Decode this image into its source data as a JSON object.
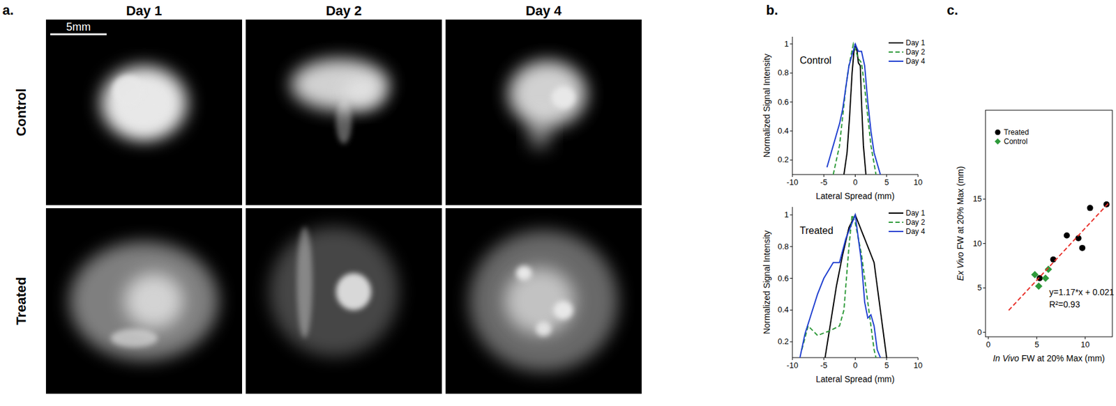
{
  "image_panel": {
    "label": "a.",
    "columns": [
      "Day 1",
      "Day 2",
      "Day 4"
    ],
    "rows": [
      "Control",
      "Treated"
    ],
    "scale_bar": "5mm"
  },
  "chart_data": [
    {
      "type": "line",
      "panel_label": "b.",
      "annotation": "Control",
      "xlabel": "Lateral Spread (mm)",
      "ylabel": "Normalized Signal Intensity",
      "xlim": [
        -10,
        10
      ],
      "xticks": [
        -10,
        -5,
        0,
        5,
        10
      ],
      "ylim": [
        0.1,
        1.05
      ],
      "yticks": [
        0.2,
        0.4,
        0.6,
        0.8,
        1
      ],
      "legend": "upper right",
      "series": [
        {
          "name": "Day 1",
          "color": "#000000",
          "line_style": "solid",
          "x": [
            -1.8,
            -1.3,
            -0.9,
            -0.5,
            -0.2,
            0,
            0.3,
            0.5,
            0.8,
            1.0,
            1.3,
            1.7
          ],
          "values": [
            0.1,
            0.25,
            0.5,
            0.8,
            0.95,
            1.0,
            0.95,
            0.87,
            0.85,
            0.6,
            0.3,
            0.1
          ]
        },
        {
          "name": "Day 2",
          "color": "#2e9a3a",
          "line_style": "dashed",
          "x": [
            -3.5,
            -2.5,
            -1.5,
            -1,
            -0.3,
            0.5,
            1,
            1.5,
            2,
            2.5,
            3.3
          ],
          "values": [
            0.1,
            0.3,
            0.7,
            0.85,
            1.0,
            0.9,
            0.87,
            0.7,
            0.5,
            0.3,
            0.1
          ]
        },
        {
          "name": "Day 4",
          "color": "#1f3fd0",
          "line_style": "solid",
          "x": [
            -4.5,
            -3.5,
            -2.5,
            -2,
            -1,
            0,
            0.5,
            1,
            1.5,
            2,
            2.5,
            3,
            4
          ],
          "values": [
            0.15,
            0.3,
            0.45,
            0.55,
            0.85,
            1.0,
            0.95,
            0.95,
            0.85,
            0.6,
            0.4,
            0.25,
            0.1
          ]
        }
      ]
    },
    {
      "type": "line",
      "annotation": "Treated",
      "xlabel": "Lateral Spread (mm)",
      "ylabel": "Normalized Signal Intensity",
      "xlim": [
        -10,
        10
      ],
      "xticks": [
        -10,
        -5,
        0,
        5,
        10
      ],
      "ylim": [
        0.1,
        1.05
      ],
      "yticks": [
        0.2,
        0.4,
        0.6,
        0.8,
        1
      ],
      "legend": "upper right",
      "series": [
        {
          "name": "Day 1",
          "color": "#000000",
          "line_style": "solid",
          "x": [
            -4.8,
            -4,
            -3,
            -2,
            -1,
            0,
            1,
            2,
            3,
            4,
            5
          ],
          "values": [
            0.1,
            0.3,
            0.55,
            0.75,
            0.92,
            1.0,
            0.9,
            0.8,
            0.7,
            0.4,
            0.1
          ]
        },
        {
          "name": "Day 2",
          "color": "#2e9a3a",
          "line_style": "dashed",
          "x": [
            -8.5,
            -7.5,
            -7,
            -6,
            -4,
            -2.5,
            -1.8,
            -1,
            -0.5,
            0,
            1,
            2,
            3,
            3.3
          ],
          "values": [
            0.15,
            0.3,
            0.28,
            0.24,
            0.27,
            0.3,
            0.4,
            0.8,
            1.0,
            0.95,
            0.75,
            0.45,
            0.15,
            0.1
          ]
        },
        {
          "name": "Day 4",
          "color": "#1f3fd0",
          "line_style": "solid",
          "x": [
            -8.8,
            -8,
            -6,
            -5,
            -3.5,
            -2.5,
            -1.5,
            -0.5,
            0,
            1,
            1.5,
            2,
            2.5,
            3,
            3.5,
            4
          ],
          "values": [
            0.1,
            0.25,
            0.5,
            0.6,
            0.7,
            0.7,
            0.85,
            0.95,
            1.0,
            0.7,
            0.45,
            0.35,
            0.37,
            0.3,
            0.15,
            0.1
          ]
        }
      ]
    },
    {
      "type": "scatter",
      "panel_label": "c.",
      "xlabel": "In Vivo FW at 20% Max (mm)",
      "ylabel": "Ex Vivo FW at 20% Max (mm)",
      "xlim": [
        -0.3,
        12.8
      ],
      "xticks": [
        0,
        5,
        10
      ],
      "ylim": [
        -0.5,
        25
      ],
      "yticks": [
        0,
        5,
        10,
        15
      ],
      "legend": "upper left",
      "annotations": [
        "y=1.17*x + 0.021",
        "R²=0.93"
      ],
      "series": [
        {
          "name": "Treated",
          "color": "#000000",
          "marker": "circle",
          "x": [
            5.3,
            6.7,
            8.1,
            9.3,
            9.7,
            10.5,
            12.2
          ],
          "values": [
            6.1,
            8.2,
            10.9,
            10.6,
            9.5,
            14.0,
            14.4
          ]
        },
        {
          "name": "Control",
          "color": "#2e9a3a",
          "marker": "diamond",
          "x": [
            4.8,
            5.2,
            5.9,
            6.2
          ],
          "values": [
            6.5,
            5.2,
            6.1,
            7.1
          ]
        },
        {
          "type": "line",
          "color": "#e8302a",
          "line_style": "dashed",
          "x": [
            2.1,
            12.5
          ],
          "values": [
            2.48,
            14.65
          ]
        }
      ]
    }
  ]
}
